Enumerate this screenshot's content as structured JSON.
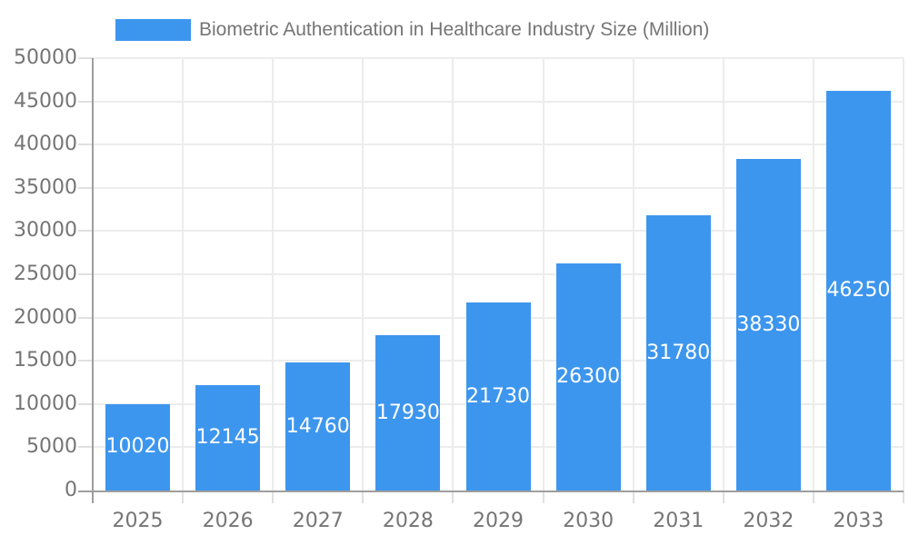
{
  "legend": {
    "label": "Biometric Authentication in Healthcare Industry Size (Million)"
  },
  "colors": {
    "bar": "#3D96EE",
    "axis_line": "#9E9E9E",
    "gridline": "#ECECEC",
    "tick": "#E0E0E0",
    "axis_text": "#757575",
    "value_text": "#FFFFFF",
    "background": "#FFFFFF"
  },
  "chart_data": {
    "type": "bar",
    "title": "Biometric Authentication in Healthcare Industry Size (Million)",
    "categories": [
      "2025",
      "2026",
      "2027",
      "2028",
      "2029",
      "2030",
      "2031",
      "2032",
      "2033"
    ],
    "values": [
      10020,
      12145,
      14760,
      17930,
      21730,
      26300,
      31780,
      38330,
      46250
    ],
    "xlabel": "",
    "ylabel": "",
    "ylim": [
      0,
      50000
    ],
    "ytick_step": 5000,
    "ytick_labels": [
      "0",
      "5000",
      "10000",
      "15000",
      "20000",
      "25000",
      "30000",
      "35000",
      "40000",
      "45000",
      "50000"
    ],
    "grid": true,
    "legend_position": "top-left",
    "value_labels": "inside-center-white"
  }
}
